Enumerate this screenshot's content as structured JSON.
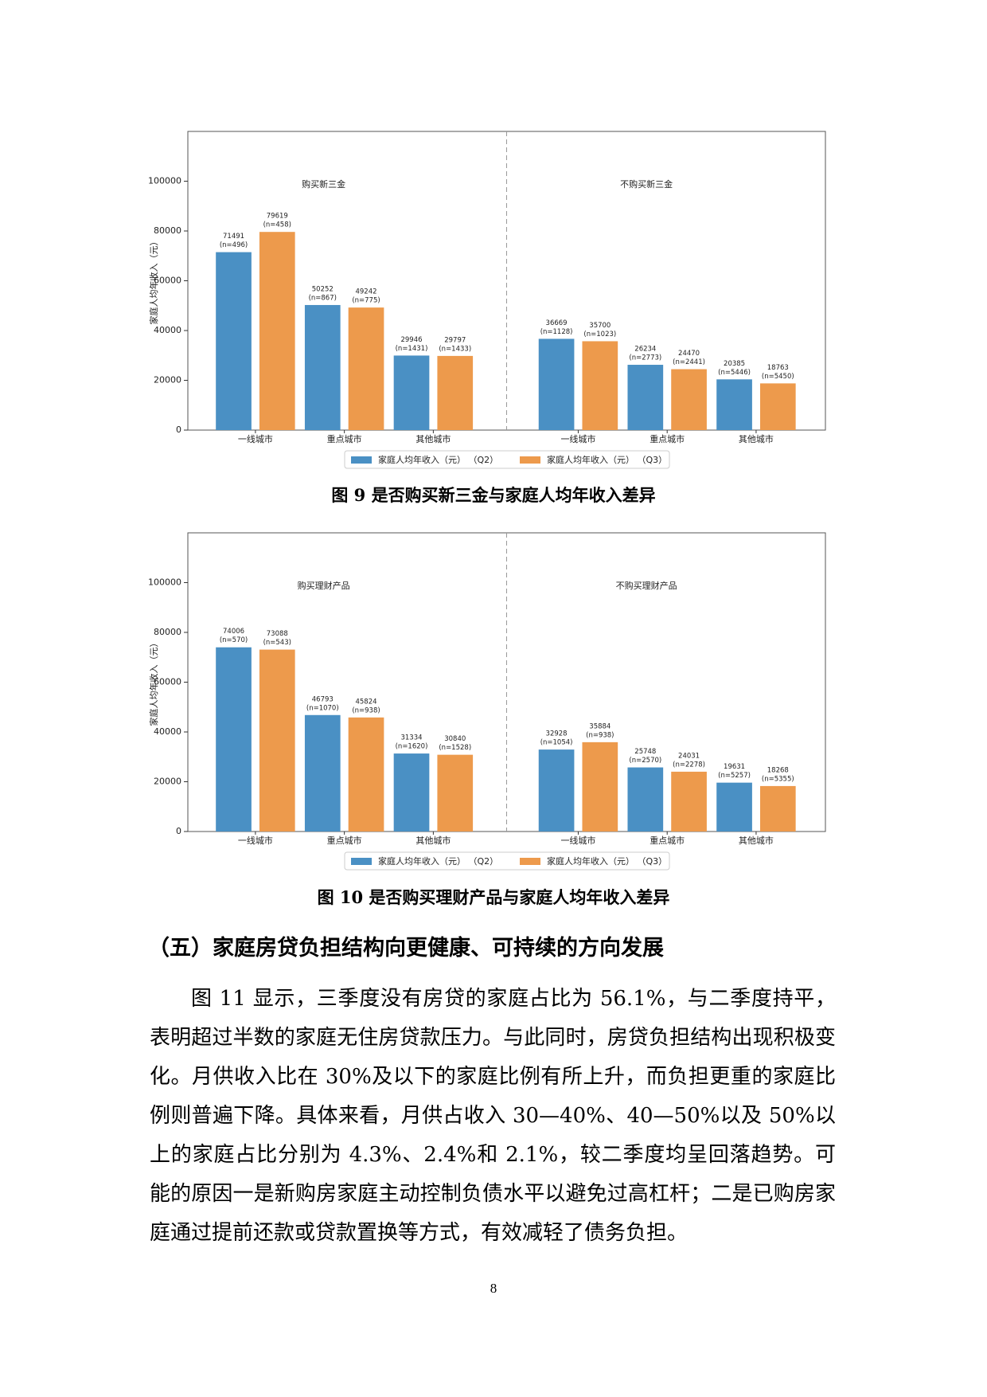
{
  "chart_data": [
    {
      "type": "bar",
      "caption": "图 9 是否购买新三金与家庭人均年收入差异",
      "ylabel": "家庭人均年收入（元）",
      "panels": [
        "购买新三金",
        "不购买新三金"
      ],
      "categories": [
        "一线城市",
        "重点城市",
        "其他城市",
        "一线城市",
        "重点城市",
        "其他城市"
      ],
      "series": [
        {
          "name": "家庭人均年收入（元） （Q2）",
          "color": "#4a90c4",
          "values": [
            71491,
            50252,
            29946,
            36669,
            26234,
            20385
          ],
          "n_labels": [
            "(n=496)",
            "(n=867)",
            "(n=1431)",
            "(n=1128)",
            "(n=2773)",
            "(n=5446)"
          ]
        },
        {
          "name": "家庭人均年收入（元） （Q3）",
          "color": "#ed9a4c",
          "values": [
            79619,
            49242,
            29797,
            35700,
            24470,
            18763
          ],
          "n_labels": [
            "(n=458)",
            "(n=775)",
            "(n=1433)",
            "(n=1023)",
            "(n=2441)",
            "(n=5450)"
          ]
        }
      ],
      "ylim": [
        0,
        120000
      ],
      "yticks": [
        0,
        20000,
        40000,
        60000,
        80000,
        100000
      ],
      "grid": false
    },
    {
      "type": "bar",
      "caption": "图 10 是否购买理财产品与家庭人均年收入差异",
      "ylabel": "家庭人均年收入（元）",
      "panels": [
        "购买理财产品",
        "不购买理财产品"
      ],
      "categories": [
        "一线城市",
        "重点城市",
        "其他城市",
        "一线城市",
        "重点城市",
        "其他城市"
      ],
      "series": [
        {
          "name": "家庭人均年收入（元） （Q2）",
          "color": "#4a90c4",
          "values": [
            74006,
            46793,
            31334,
            32928,
            25748,
            19631
          ],
          "n_labels": [
            "(n=570)",
            "(n=1070)",
            "(n=1620)",
            "(n=1054)",
            "(n=2570)",
            "(n=5257)"
          ]
        },
        {
          "name": "家庭人均年收入（元） （Q3）",
          "color": "#ed9a4c",
          "values": [
            73088,
            45824,
            30840,
            35884,
            24031,
            18268
          ],
          "n_labels": [
            "(n=543)",
            "(n=938)",
            "(n=1528)",
            "(n=938)",
            "(n=2278)",
            "(n=5355)"
          ]
        }
      ],
      "ylim": [
        0,
        120000
      ],
      "yticks": [
        0,
        20000,
        40000,
        60000,
        80000,
        100000
      ],
      "grid": false
    }
  ],
  "section_heading": "（五）家庭房贷负担结构向更健康、可持续的方向发展",
  "paragraph": "图 11 显示，三季度没有房贷的家庭占比为 56.1%，与二季度持平，表明超过半数的家庭无住房贷款压力。与此同时，房贷负担结构出现积极变化。月供收入比在 30%及以下的家庭比例有所上升，而负担更重的家庭比例则普遍下降。具体来看，月供占收入 30—40%、40—50%以及 50%以上的家庭占比分别为 4.3%、2.4%和 2.1%，较二季度均呈回落趋势。可能的原因一是新购房家庭主动控制负债水平以避免过高杠杆；二是已购房家庭通过提前还款或贷款置换等方式，有效减轻了债务负担。",
  "page_number": "8"
}
